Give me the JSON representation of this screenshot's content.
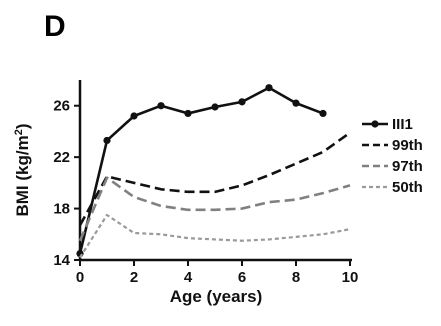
{
  "chart_data": {
    "type": "line",
    "panel_label": "D",
    "title": "",
    "xlabel": "Age (years)",
    "ylabel": "BMI (kg/m",
    "ylabel_superscript": "2",
    "ylabel_suffix": ")",
    "xlim": [
      0,
      10
    ],
    "ylim": [
      14,
      28
    ],
    "x_ticks": [
      0,
      2,
      4,
      6,
      8,
      10
    ],
    "y_ticks": [
      14,
      18,
      22,
      26
    ],
    "grid": false,
    "legend_position": "right",
    "series": [
      {
        "name": "III1",
        "color": "#111111",
        "style": "solid-markers",
        "x": [
          0,
          1,
          2,
          3,
          4,
          5,
          6,
          7,
          8,
          9
        ],
        "y": [
          14.5,
          23.3,
          25.2,
          26.0,
          25.4,
          25.9,
          26.3,
          27.4,
          26.2,
          25.4
        ]
      },
      {
        "name": "99th",
        "color": "#111111",
        "style": "dashed",
        "x": [
          0,
          1,
          2,
          3,
          4,
          5,
          6,
          7,
          8,
          9,
          10
        ],
        "y": [
          16.7,
          20.5,
          20.0,
          19.5,
          19.3,
          19.3,
          19.8,
          20.6,
          21.5,
          22.4,
          23.9
        ]
      },
      {
        "name": "97th",
        "color": "#808080",
        "style": "dashed",
        "x": [
          0,
          1,
          2,
          3,
          4,
          5,
          6,
          7,
          8,
          9,
          10
        ],
        "y": [
          15.5,
          20.4,
          18.9,
          18.2,
          17.9,
          17.9,
          18.0,
          18.5,
          18.7,
          19.2,
          19.8
        ]
      },
      {
        "name": "50th",
        "color": "#9a9a9a",
        "style": "dotted",
        "x": [
          0,
          1,
          2,
          3,
          4,
          5,
          6,
          7,
          8,
          9,
          10
        ],
        "y": [
          14.2,
          17.5,
          16.1,
          16.0,
          15.7,
          15.6,
          15.5,
          15.6,
          15.8,
          16.0,
          16.4
        ]
      }
    ]
  }
}
